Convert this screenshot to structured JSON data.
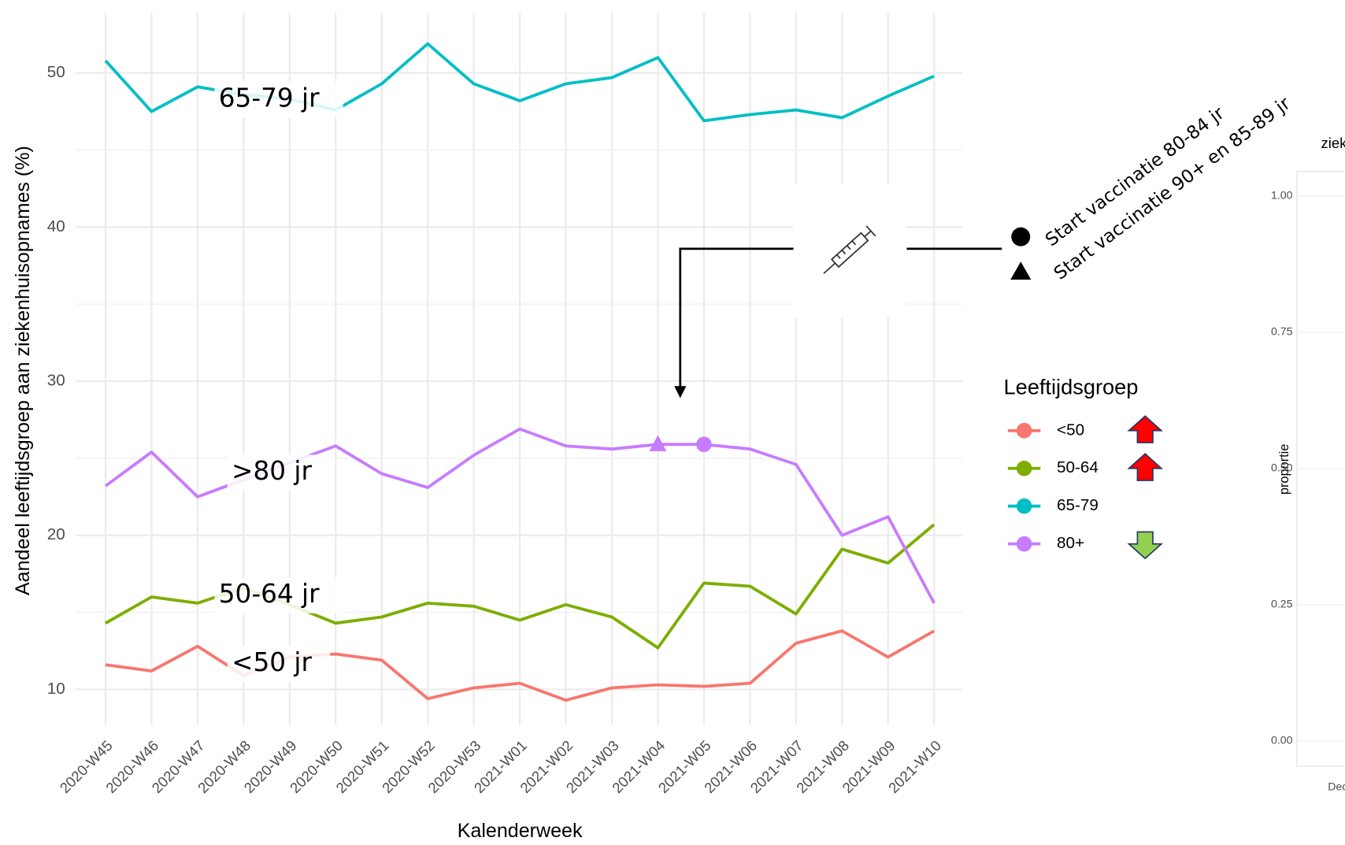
{
  "chart_data": [
    {
      "type": "line",
      "xlabel": "Kalenderweek",
      "ylabel": "Aandeel leeftijdsgroep aan ziekenhuisopnames (%)",
      "categories": [
        "2020-W45",
        "2020-W46",
        "2020-W47",
        "2020-W48",
        "2020-W49",
        "2020-W50",
        "2020-W51",
        "2020-W52",
        "2020-W53",
        "2021-W01",
        "2021-W02",
        "2021-W03",
        "2021-W04",
        "2021-W05",
        "2021-W06",
        "2021-W07",
        "2021-W08",
        "2021-W09",
        "2021-W10"
      ],
      "series": [
        {
          "name": "<50",
          "color": "#f8766d",
          "trend": "up",
          "values": [
            11.6,
            11.2,
            12.8,
            10.9,
            12.1,
            12.3,
            11.9,
            9.4,
            10.1,
            10.4,
            9.3,
            10.1,
            10.3,
            10.2,
            10.4,
            13.0,
            13.8,
            12.1,
            13.8
          ]
        },
        {
          "name": "50-64",
          "color": "#7cae00",
          "trend": "up",
          "values": [
            14.3,
            16.0,
            15.6,
            16.6,
            15.5,
            14.3,
            14.7,
            15.6,
            15.4,
            14.5,
            15.5,
            14.7,
            12.7,
            16.9,
            16.7,
            14.9,
            19.1,
            18.2,
            20.7
          ]
        },
        {
          "name": "65-79",
          "color": "#00bfc4",
          "values": [
            50.8,
            47.5,
            49.1,
            48.6,
            48.3,
            47.6,
            49.3,
            51.9,
            49.3,
            48.2,
            49.3,
            49.7,
            51.0,
            46.9,
            47.3,
            47.6,
            47.1,
            48.5,
            49.8
          ]
        },
        {
          "name": "80+",
          "color": "#c77cff",
          "trend": "down",
          "values": [
            23.2,
            25.4,
            22.5,
            23.6,
            24.7,
            25.8,
            24.0,
            23.1,
            25.2,
            26.9,
            25.8,
            25.6,
            25.9,
            25.9,
            25.6,
            24.6,
            20.0,
            21.2,
            15.6
          ],
          "markers": [
            {
              "at": "2021-W04",
              "shape": "triangle"
            },
            {
              "at": "2021-W05",
              "shape": "circle"
            }
          ]
        }
      ],
      "line_labels": [
        "65-79 jr",
        ">80 jr",
        "50-64 jr",
        "<50 jr"
      ],
      "legend_title": "Leeftijdsgroep",
      "vaccination_legend": [
        {
          "shape": "circle",
          "label": "Start vaccinatie 80-84 jr"
        },
        {
          "shape": "triangle",
          "label": "Start vaccinatie 90+ en 85-89 jr"
        }
      ],
      "ylim": [
        7.7,
        53.9
      ],
      "yticks": [
        10,
        20,
        30,
        40,
        50
      ],
      "grid": true
    },
    {
      "type": "line",
      "title": "ziek",
      "ylabel": "proportie",
      "categories": [
        "Dec"
      ],
      "series": [],
      "ylim": [
        -0.046,
        1.045
      ],
      "yticks": [
        {
          "value": 0,
          "label": "0.00"
        },
        {
          "value": 0.25,
          "label": "0.25"
        },
        {
          "value": 0.5,
          "label": "0.50"
        },
        {
          "value": 0.75,
          "label": "0.75"
        },
        {
          "value": 1,
          "label": "1.00"
        }
      ]
    }
  ]
}
